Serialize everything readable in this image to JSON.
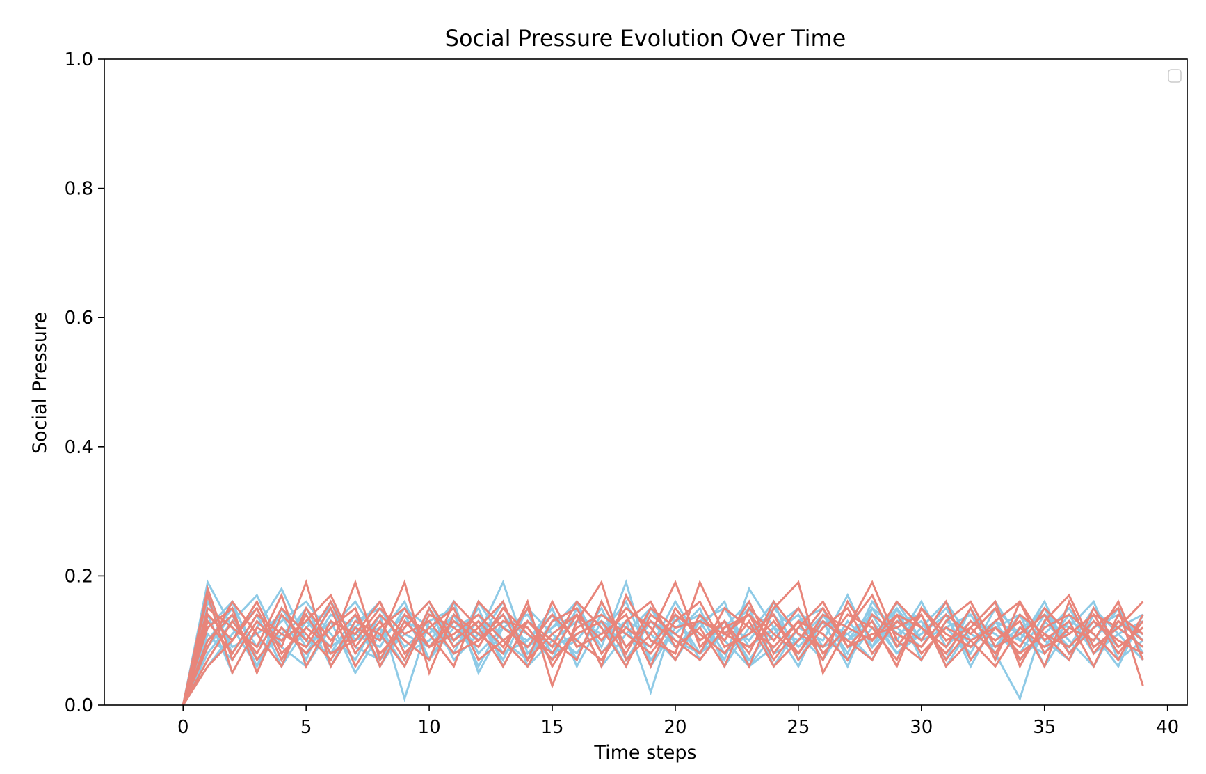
{
  "chart_data": {
    "type": "line",
    "title": "Social Pressure Evolution Over Time",
    "xlabel": "Time steps",
    "ylabel": "Social Pressure",
    "xlim": [
      -3.2,
      40.8
    ],
    "ylim": [
      0.0,
      1.0
    ],
    "x_ticks": [
      0,
      5,
      10,
      15,
      20,
      25,
      30,
      35,
      40
    ],
    "x_tick_labels": [
      "0",
      "5",
      "10",
      "15",
      "20",
      "25",
      "30",
      "35",
      "40"
    ],
    "y_ticks": [
      0.0,
      0.2,
      0.4,
      0.6,
      0.8,
      1.0
    ],
    "y_tick_labels": [
      "0.0",
      "0.2",
      "0.4",
      "0.6",
      "0.8",
      "1.0"
    ],
    "grid": false,
    "legend": {
      "placement": "top-right",
      "entries": []
    },
    "series_colors": {
      "blue_group": "#8ecae6",
      "red_group": "#e8857a"
    },
    "x": [
      0,
      1,
      2,
      3,
      4,
      5,
      6,
      7,
      8,
      9,
      10,
      11,
      12,
      13,
      14,
      15,
      16,
      17,
      18,
      19,
      20,
      21,
      22,
      23,
      24,
      25,
      26,
      27,
      28,
      29,
      30,
      31,
      32,
      33,
      34,
      35,
      36,
      37,
      38,
      39
    ],
    "series": [
      {
        "group": "blue_group",
        "values": [
          0.0,
          0.19,
          0.12,
          0.06,
          0.15,
          0.09,
          0.13,
          0.05,
          0.11,
          0.16,
          0.07,
          0.12,
          0.14,
          0.08,
          0.1,
          0.15,
          0.06,
          0.13,
          0.11,
          0.09,
          0.14,
          0.07,
          0.12,
          0.16,
          0.08,
          0.1,
          0.13,
          0.06,
          0.15,
          0.09,
          0.11,
          0.14,
          0.07,
          0.12,
          0.1,
          0.16,
          0.08,
          0.13,
          0.09,
          0.12
        ]
      },
      {
        "group": "blue_group",
        "values": [
          0.0,
          0.17,
          0.08,
          0.14,
          0.06,
          0.12,
          0.15,
          0.09,
          0.07,
          0.13,
          0.11,
          0.16,
          0.05,
          0.12,
          0.14,
          0.08,
          0.1,
          0.15,
          0.07,
          0.13,
          0.09,
          0.12,
          0.16,
          0.06,
          0.11,
          0.14,
          0.08,
          0.12,
          0.1,
          0.15,
          0.07,
          0.13,
          0.11,
          0.09,
          0.14,
          0.06,
          0.12,
          0.1,
          0.15,
          0.08
        ]
      },
      {
        "group": "blue_group",
        "values": [
          0.0,
          0.12,
          0.16,
          0.07,
          0.11,
          0.14,
          0.06,
          0.13,
          0.15,
          0.09,
          0.12,
          0.08,
          0.16,
          0.1,
          0.07,
          0.13,
          0.15,
          0.09,
          0.19,
          0.06,
          0.12,
          0.14,
          0.08,
          0.11,
          0.16,
          0.07,
          0.13,
          0.1,
          0.15,
          0.12,
          0.09,
          0.14,
          0.06,
          0.13,
          0.11,
          0.15,
          0.08,
          0.12,
          0.14,
          0.1
        ]
      },
      {
        "group": "blue_group",
        "values": [
          0.0,
          0.08,
          0.13,
          0.17,
          0.09,
          0.06,
          0.12,
          0.16,
          0.1,
          0.14,
          0.07,
          0.13,
          0.11,
          0.19,
          0.08,
          0.12,
          0.14,
          0.06,
          0.11,
          0.15,
          0.09,
          0.13,
          0.07,
          0.18,
          0.12,
          0.1,
          0.14,
          0.08,
          0.16,
          0.11,
          0.13,
          0.07,
          0.15,
          0.09,
          0.12,
          0.14,
          0.1,
          0.06,
          0.13,
          0.11
        ]
      },
      {
        "group": "blue_group",
        "values": [
          0.0,
          0.14,
          0.05,
          0.12,
          0.18,
          0.1,
          0.08,
          0.14,
          0.06,
          0.12,
          0.16,
          0.09,
          0.13,
          0.07,
          0.15,
          0.11,
          0.08,
          0.14,
          0.12,
          0.09,
          0.16,
          0.1,
          0.13,
          0.07,
          0.12,
          0.15,
          0.09,
          0.11,
          0.14,
          0.08,
          0.12,
          0.16,
          0.1,
          0.13,
          0.07,
          0.11,
          0.15,
          0.09,
          0.12,
          0.14
        ]
      },
      {
        "group": "blue_group",
        "values": [
          0.0,
          0.1,
          0.15,
          0.09,
          0.13,
          0.16,
          0.11,
          0.07,
          0.14,
          0.01,
          0.13,
          0.15,
          0.08,
          0.12,
          0.1,
          0.14,
          0.07,
          0.16,
          0.09,
          0.13,
          0.11,
          0.15,
          0.06,
          0.12,
          0.14,
          0.09,
          0.13,
          0.11,
          0.07,
          0.15,
          0.1,
          0.12,
          0.14,
          0.08,
          0.01,
          0.13,
          0.09,
          0.15,
          0.11,
          0.07
        ]
      },
      {
        "group": "blue_group",
        "values": [
          0.0,
          0.06,
          0.11,
          0.15,
          0.07,
          0.13,
          0.09,
          0.12,
          0.16,
          0.08,
          0.1,
          0.14,
          0.06,
          0.13,
          0.11,
          0.07,
          0.15,
          0.1,
          0.13,
          0.02,
          0.14,
          0.08,
          0.11,
          0.15,
          0.06,
          0.12,
          0.1,
          0.17,
          0.09,
          0.13,
          0.14,
          0.06,
          0.12,
          0.16,
          0.1,
          0.08,
          0.13,
          0.11,
          0.06,
          0.14
        ]
      },
      {
        "group": "blue_group",
        "values": [
          0.0,
          0.16,
          0.09,
          0.11,
          0.14,
          0.07,
          0.16,
          0.1,
          0.12,
          0.06,
          0.15,
          0.07,
          0.11,
          0.14,
          0.09,
          0.12,
          0.16,
          0.08,
          0.13,
          0.11,
          0.07,
          0.13,
          0.15,
          0.09,
          0.12,
          0.06,
          0.14,
          0.1,
          0.13,
          0.08,
          0.11,
          0.15,
          0.09,
          0.12,
          0.14,
          0.1,
          0.07,
          0.14,
          0.12,
          0.09
        ]
      },
      {
        "group": "blue_group",
        "values": [
          0.0,
          0.11,
          0.07,
          0.13,
          0.1,
          0.15,
          0.08,
          0.11,
          0.09,
          0.15,
          0.12,
          0.1,
          0.15,
          0.06,
          0.13,
          0.09,
          0.11,
          0.13,
          0.06,
          0.15,
          0.1,
          0.08,
          0.13,
          0.1,
          0.15,
          0.11,
          0.07,
          0.13,
          0.09,
          0.16,
          0.1,
          0.12,
          0.08,
          0.15,
          0.11,
          0.09,
          0.14,
          0.08,
          0.11,
          0.13
        ]
      },
      {
        "group": "blue_group",
        "values": [
          0.0,
          0.09,
          0.14,
          0.06,
          0.12,
          0.08,
          0.14,
          0.12,
          0.07,
          0.11,
          0.09,
          0.14,
          0.1,
          0.16,
          0.06,
          0.1,
          0.13,
          0.11,
          0.16,
          0.07,
          0.12,
          0.14,
          0.1,
          0.06,
          0.09,
          0.13,
          0.15,
          0.07,
          0.12,
          0.1,
          0.16,
          0.09,
          0.13,
          0.11,
          0.08,
          0.14,
          0.12,
          0.16,
          0.07,
          0.1
        ]
      },
      {
        "group": "red_group",
        "values": [
          0.0,
          0.18,
          0.07,
          0.13,
          0.09,
          0.19,
          0.06,
          0.12,
          0.1,
          0.19,
          0.05,
          0.14,
          0.11,
          0.08,
          0.16,
          0.03,
          0.13,
          0.19,
          0.07,
          0.11,
          0.19,
          0.09,
          0.13,
          0.06,
          0.15,
          0.19,
          0.05,
          0.12,
          0.17,
          0.09,
          0.14,
          0.07,
          0.12,
          0.16,
          0.06,
          0.13,
          0.17,
          0.09,
          0.12,
          0.16
        ]
      },
      {
        "group": "red_group",
        "values": [
          0.0,
          0.12,
          0.15,
          0.05,
          0.14,
          0.1,
          0.16,
          0.08,
          0.13,
          0.07,
          0.15,
          0.09,
          0.12,
          0.16,
          0.07,
          0.11,
          0.14,
          0.06,
          0.17,
          0.1,
          0.08,
          0.19,
          0.11,
          0.14,
          0.07,
          0.12,
          0.16,
          0.09,
          0.13,
          0.06,
          0.15,
          0.1,
          0.12,
          0.08,
          0.14,
          0.11,
          0.07,
          0.15,
          0.09,
          0.12
        ]
      },
      {
        "group": "red_group",
        "values": [
          0.0,
          0.06,
          0.1,
          0.16,
          0.08,
          0.12,
          0.09,
          0.19,
          0.07,
          0.14,
          0.11,
          0.06,
          0.16,
          0.12,
          0.09,
          0.14,
          0.1,
          0.07,
          0.13,
          0.16,
          0.09,
          0.12,
          0.06,
          0.15,
          0.11,
          0.08,
          0.14,
          0.12,
          0.19,
          0.1,
          0.07,
          0.13,
          0.16,
          0.09,
          0.11,
          0.14,
          0.08,
          0.12,
          0.15,
          0.03
        ]
      },
      {
        "group": "red_group",
        "values": [
          0.0,
          0.15,
          0.12,
          0.09,
          0.17,
          0.06,
          0.13,
          0.11,
          0.16,
          0.08,
          0.12,
          0.15,
          0.07,
          0.1,
          0.13,
          0.09,
          0.16,
          0.12,
          0.06,
          0.14,
          0.11,
          0.08,
          0.15,
          0.12,
          0.09,
          0.13,
          0.07,
          0.16,
          0.1,
          0.14,
          0.12,
          0.09,
          0.15,
          0.07,
          0.16,
          0.1,
          0.13,
          0.06,
          0.14,
          0.11
        ]
      },
      {
        "group": "red_group",
        "values": [
          0.0,
          0.09,
          0.16,
          0.11,
          0.06,
          0.15,
          0.1,
          0.14,
          0.08,
          0.12,
          0.16,
          0.1,
          0.13,
          0.09,
          0.15,
          0.06,
          0.12,
          0.14,
          0.11,
          0.08,
          0.13,
          0.16,
          0.09,
          0.11,
          0.14,
          0.07,
          0.12,
          0.15,
          0.08,
          0.13,
          0.1,
          0.16,
          0.07,
          0.12,
          0.09,
          0.15,
          0.11,
          0.14,
          0.08,
          0.13
        ]
      },
      {
        "group": "red_group",
        "values": [
          0.0,
          0.13,
          0.08,
          0.14,
          0.11,
          0.09,
          0.15,
          0.06,
          0.12,
          0.15,
          0.09,
          0.13,
          0.1,
          0.14,
          0.07,
          0.16,
          0.09,
          0.11,
          0.14,
          0.06,
          0.15,
          0.1,
          0.13,
          0.08,
          0.16,
          0.11,
          0.09,
          0.14,
          0.12,
          0.07,
          0.15,
          0.11,
          0.09,
          0.13,
          0.16,
          0.08,
          0.12,
          0.1,
          0.16,
          0.07
        ]
      },
      {
        "group": "red_group",
        "values": [
          0.0,
          0.07,
          0.13,
          0.08,
          0.15,
          0.11,
          0.07,
          0.13,
          0.11,
          0.06,
          0.14,
          0.12,
          0.09,
          0.15,
          0.11,
          0.08,
          0.14,
          0.1,
          0.15,
          0.12,
          0.07,
          0.14,
          0.1,
          0.16,
          0.08,
          0.13,
          0.11,
          0.07,
          0.14,
          0.11,
          0.09,
          0.14,
          0.11,
          0.15,
          0.07,
          0.12,
          0.14,
          0.11,
          0.07,
          0.14
        ]
      },
      {
        "group": "red_group",
        "values": [
          0.0,
          0.17,
          0.05,
          0.12,
          0.1,
          0.13,
          0.17,
          0.09,
          0.14,
          0.1,
          0.07,
          0.16,
          0.12,
          0.06,
          0.13,
          0.1,
          0.07,
          0.16,
          0.09,
          0.13,
          0.1,
          0.07,
          0.12,
          0.14,
          0.1,
          0.15,
          0.08,
          0.12,
          0.1,
          0.16,
          0.12,
          0.08,
          0.13,
          0.1,
          0.13,
          0.06,
          0.16,
          0.08,
          0.13,
          0.1
        ]
      },
      {
        "group": "red_group",
        "values": [
          0.0,
          0.1,
          0.14,
          0.07,
          0.12,
          0.08,
          0.12,
          0.15,
          0.06,
          0.13,
          0.09,
          0.11,
          0.14,
          0.1,
          0.06,
          0.13,
          0.15,
          0.08,
          0.12,
          0.09,
          0.14,
          0.11,
          0.08,
          0.13,
          0.06,
          0.1,
          0.15,
          0.09,
          0.11,
          0.12,
          0.14,
          0.06,
          0.1,
          0.12,
          0.08,
          0.11,
          0.09,
          0.13,
          0.1,
          0.08
        ]
      },
      {
        "group": "red_group",
        "values": [
          0.0,
          0.14,
          0.1,
          0.15,
          0.07,
          0.14,
          0.08,
          0.1,
          0.15,
          0.11,
          0.13,
          0.08,
          0.1,
          0.13,
          0.12,
          0.07,
          0.11,
          0.13,
          0.08,
          0.15,
          0.12,
          0.13,
          0.11,
          0.09,
          0.13,
          0.08,
          0.13,
          0.1,
          0.07,
          0.14,
          0.08,
          0.12,
          0.1,
          0.06,
          0.12,
          0.09,
          0.11,
          0.14,
          0.12,
          0.09
        ]
      }
    ]
  }
}
